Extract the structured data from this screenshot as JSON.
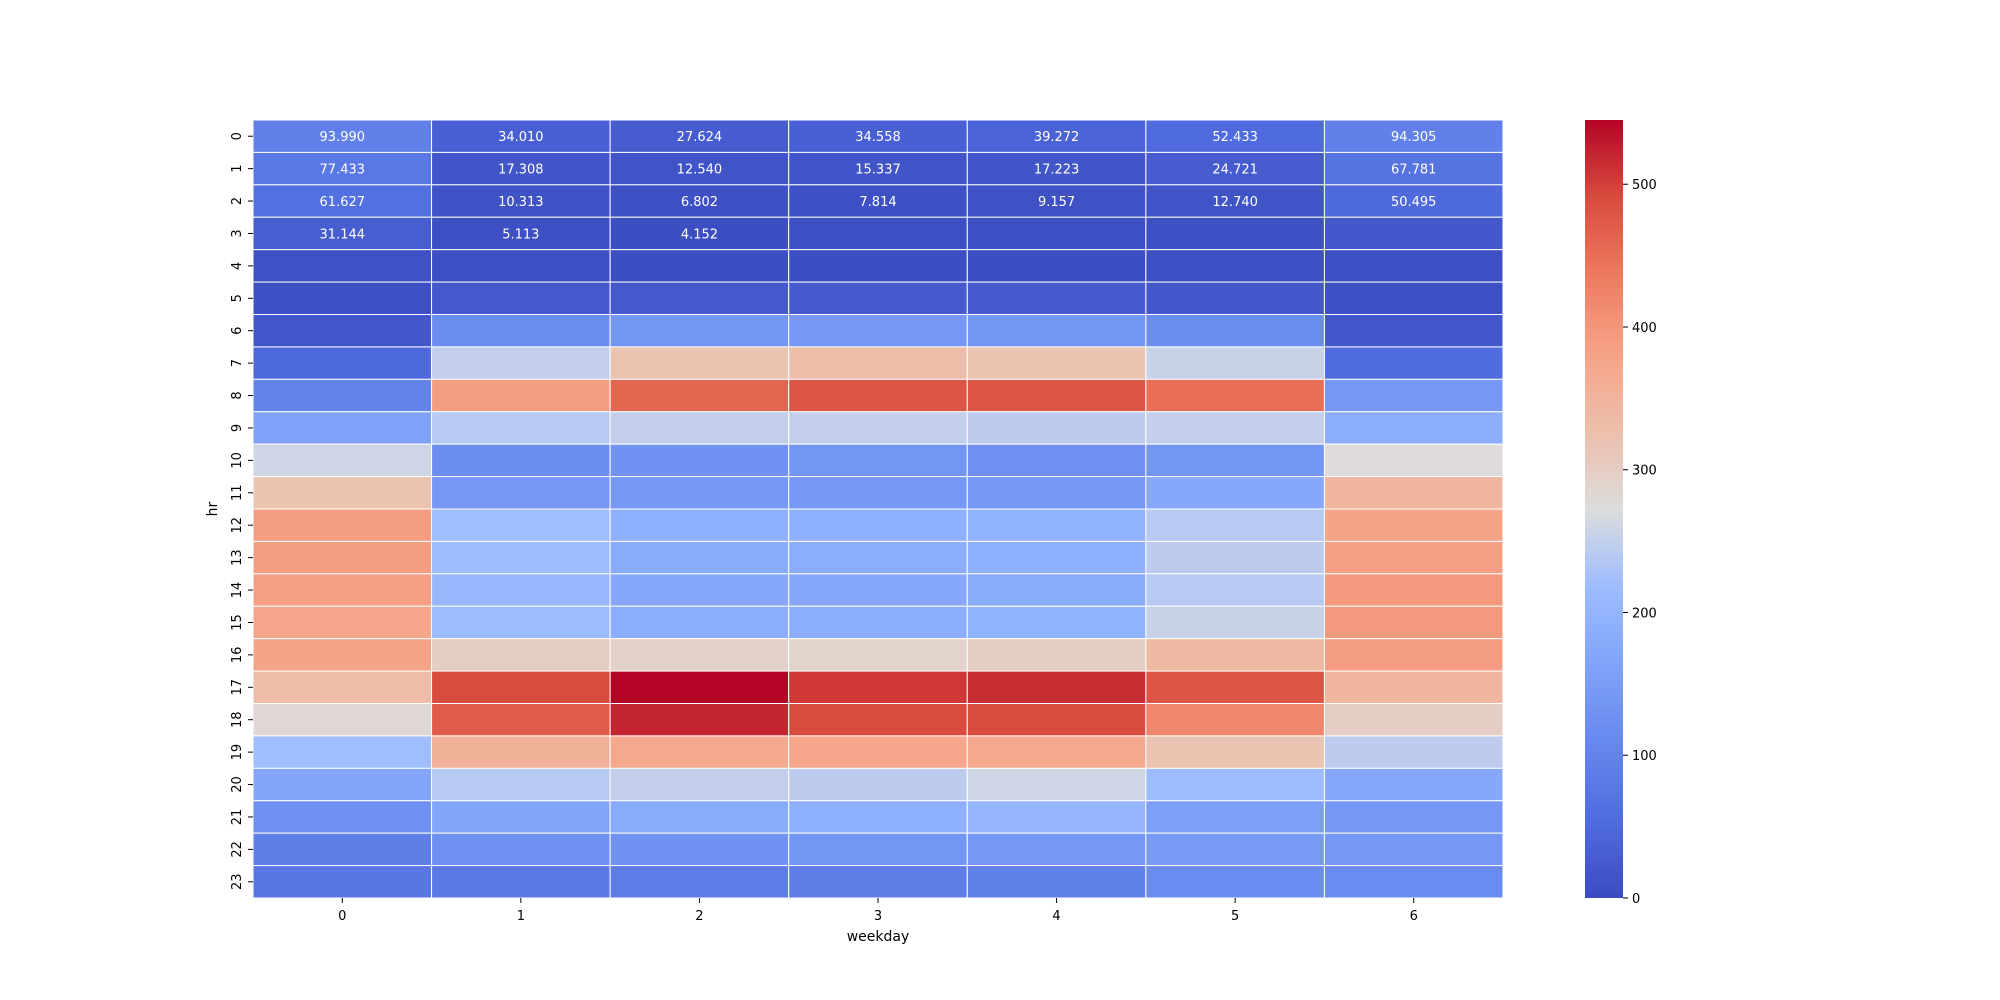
{
  "chart_data": {
    "type": "heatmap",
    "title": "",
    "xlabel": "weekday",
    "ylabel": "hr",
    "x_categories": [
      "0",
      "1",
      "2",
      "3",
      "4",
      "5",
      "6"
    ],
    "y_categories": [
      "0",
      "1",
      "2",
      "3",
      "4",
      "5",
      "6",
      "7",
      "8",
      "9",
      "10",
      "11",
      "12",
      "13",
      "14",
      "15",
      "16",
      "17",
      "18",
      "19",
      "20",
      "21",
      "22",
      "23"
    ],
    "values": [
      [
        93.99,
        34.01,
        27.624,
        34.558,
        39.272,
        52.433,
        94.305
      ],
      [
        77.433,
        17.308,
        12.54,
        15.337,
        17.223,
        24.721,
        67.781
      ],
      [
        61.627,
        10.313,
        6.802,
        7.814,
        9.157,
        12.74,
        50.495
      ],
      [
        31.144,
        5.113,
        4.152,
        4.5,
        5.2,
        6.5,
        20
      ],
      [
        9,
        5,
        3,
        3,
        3,
        5,
        5
      ],
      [
        8,
        22,
        22,
        24,
        23,
        20,
        8
      ],
      [
        18,
        120,
        135,
        140,
        135,
        120,
        18
      ],
      [
        50,
        250,
        320,
        330,
        320,
        255,
        55
      ],
      [
        100,
        390,
        460,
        480,
        480,
        450,
        140
      ],
      [
        160,
        240,
        250,
        250,
        245,
        250,
        185
      ],
      [
        260,
        120,
        130,
        135,
        125,
        135,
        275
      ],
      [
        320,
        140,
        140,
        140,
        140,
        175,
        345
      ],
      [
        390,
        220,
        190,
        190,
        195,
        240,
        380
      ],
      [
        390,
        215,
        180,
        185,
        190,
        245,
        385
      ],
      [
        385,
        205,
        175,
        175,
        180,
        240,
        395
      ],
      [
        375,
        215,
        185,
        185,
        195,
        255,
        395
      ],
      [
        380,
        300,
        295,
        290,
        300,
        340,
        390
      ],
      [
        330,
        490,
        545,
        505,
        515,
        480,
        345
      ],
      [
        280,
        470,
        520,
        490,
        490,
        420,
        300
      ],
      [
        220,
        355,
        370,
        375,
        370,
        320,
        245
      ],
      [
        170,
        240,
        250,
        245,
        260,
        215,
        175
      ],
      [
        125,
        170,
        180,
        190,
        200,
        155,
        140
      ],
      [
        90,
        125,
        130,
        135,
        140,
        145,
        140
      ],
      [
        75,
        80,
        85,
        90,
        95,
        115,
        115
      ]
    ],
    "annotated_rows": 4,
    "annotations": [
      [
        "93.990",
        "34.010",
        "27.624",
        "34.558",
        "39.272",
        "52.433",
        "94.305"
      ],
      [
        "77.433",
        "17.308",
        "12.540",
        "15.337",
        "17.223",
        "24.721",
        "67.781"
      ],
      [
        "61.627",
        "10.313",
        "6.802",
        "7.814",
        "9.157",
        "12.740",
        "50.495"
      ],
      [
        "31.144",
        "5.113",
        "4.152",
        "",
        "",
        "",
        ""
      ]
    ],
    "colormap": "coolwarm",
    "vmin": 0,
    "vmax": 545,
    "colorbar_ticks": [
      0,
      100,
      200,
      300,
      400,
      500
    ],
    "colorbar_tick_labels": [
      "0",
      "100",
      "200",
      "300",
      "400",
      "500"
    ],
    "colors": {
      "low": "#3b4cc0",
      "mid": "#dddcdc",
      "high": "#b40426",
      "gridline": "#ffffff"
    }
  }
}
